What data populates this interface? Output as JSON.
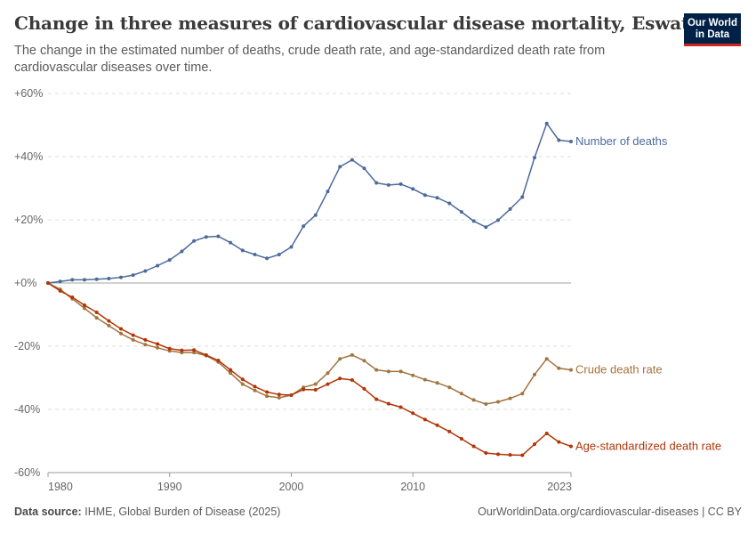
{
  "header": {
    "title": "Change in three measures of cardiovascular disease mortality, Eswatini",
    "subtitle": "The change in the estimated number of deaths, crude death rate, and age-standardized death rate from cardiovascular diseases over time.",
    "logo_line1": "Our World",
    "logo_line2": "in Data"
  },
  "footer": {
    "source_label": "Data source:",
    "source_text": "IHME, Global Burden of Disease (2025)",
    "url_license": "OurWorldinData.org/cardiovascular-diseases | CC BY"
  },
  "chart_data": {
    "type": "line",
    "x": [
      1980,
      1981,
      1982,
      1983,
      1984,
      1985,
      1986,
      1987,
      1988,
      1989,
      1990,
      1991,
      1992,
      1993,
      1994,
      1995,
      1996,
      1997,
      1998,
      1999,
      2000,
      2001,
      2002,
      2003,
      2004,
      2005,
      2006,
      2007,
      2008,
      2009,
      2010,
      2011,
      2012,
      2013,
      2014,
      2015,
      2016,
      2017,
      2018,
      2019,
      2020,
      2021,
      2022,
      2023
    ],
    "x_tick_labels": [
      "1980",
      "1990",
      "2000",
      "2010",
      "2023"
    ],
    "y_tick_labels": [
      "+60%",
      "+40%",
      "+20%",
      "+0%",
      "-20%",
      "-40%",
      "-60%"
    ],
    "y_tick_values": [
      60,
      40,
      20,
      0,
      -20,
      -40,
      -60
    ],
    "ylim": [
      -60,
      60
    ],
    "xlim": [
      1980,
      2023
    ],
    "grid": "horizontal dashed",
    "series": [
      {
        "name": "Number of deaths",
        "color": "#4c6a9c",
        "values": [
          0,
          0.5,
          1,
          1,
          1.2,
          1.4,
          1.8,
          2.5,
          3.8,
          5.5,
          7.3,
          10,
          13.3,
          14.6,
          14.8,
          12.8,
          10.3,
          9,
          7.8,
          9,
          11.4,
          18,
          21.5,
          29,
          36.8,
          39,
          36.3,
          31.7,
          31,
          31.3,
          29.8,
          27.8,
          27,
          25.2,
          22.5,
          19.6,
          17.7,
          19.9,
          23.4,
          27.2,
          39.7,
          50.5,
          45.2,
          44.8
        ]
      },
      {
        "name": "Crude death rate",
        "color": "#a2743f",
        "values": [
          0,
          -2,
          -5,
          -8,
          -11,
          -13.5,
          -16,
          -18,
          -19.5,
          -20.5,
          -21.5,
          -22,
          -22,
          -23,
          -25,
          -28.5,
          -32,
          -34,
          -35.8,
          -36.3,
          -35.5,
          -33,
          -32,
          -28.5,
          -24,
          -22.8,
          -24.6,
          -27.5,
          -28,
          -28,
          -29.2,
          -30.6,
          -31.6,
          -33,
          -35,
          -37,
          -38.3,
          -37.6,
          -36.5,
          -35,
          -29,
          -24,
          -27,
          -27.5
        ]
      },
      {
        "name": "Age-standardized death rate",
        "color": "#b13507",
        "values": [
          0,
          -2.5,
          -4.5,
          -7,
          -9.3,
          -12,
          -14.5,
          -16.5,
          -18,
          -19.3,
          -20.8,
          -21.3,
          -21.2,
          -22.8,
          -24.5,
          -27.5,
          -30.5,
          -32.8,
          -34.5,
          -35.3,
          -35.5,
          -33.7,
          -33.8,
          -32,
          -30.2,
          -30.7,
          -33.5,
          -36.8,
          -38.2,
          -39.3,
          -41.2,
          -43.2,
          -45,
          -47,
          -49.3,
          -51.7,
          -53.8,
          -54.2,
          -54.4,
          -54.5,
          -51,
          -47.6,
          -50.3,
          -51.7
        ]
      }
    ]
  }
}
